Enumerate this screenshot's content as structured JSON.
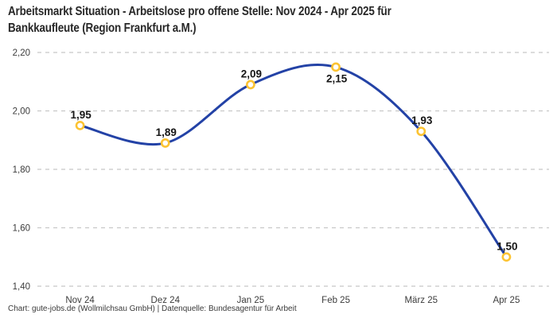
{
  "title": {
    "lines": [
      "Arbeitsmarkt Situation - Arbeitslose pro offene Stelle: Nov 2024 - Apr 2025 für",
      "Bankkaufleute (Region Frankfurt a.M.)"
    ]
  },
  "footer": {
    "source": "Chart: gute-jobs.de (Wollmilchsau GmbH) | Datenquelle: Bundesagentur für Arbeit"
  },
  "chart_data": {
    "type": "line",
    "title": "Arbeitsmarkt Situation - Arbeitslose pro offene Stelle: Nov 2024 - Apr 2025 für Bankkaufleute (Region Frankfurt a.M.)",
    "categories": [
      "Nov 24",
      "Dez 24",
      "Jan 25",
      "Feb 25",
      "März 25",
      "Apr 25"
    ],
    "values": [
      1.95,
      1.89,
      2.09,
      2.15,
      1.93,
      1.5
    ],
    "point_labels": [
      "1,95",
      "1,89",
      "2,09",
      "2,15",
      "1,93",
      "1,50"
    ],
    "point_label_positions": [
      "above",
      "above",
      "above",
      "below",
      "above",
      "above"
    ],
    "ylim": [
      1.4,
      2.2
    ],
    "yticks": [
      {
        "label": "2,20",
        "value": 2.2
      },
      {
        "label": "2,00",
        "value": 2.0
      },
      {
        "label": "1,80",
        "value": 1.8
      },
      {
        "label": "1,60",
        "value": 1.6
      },
      {
        "label": "1,40",
        "value": 1.4
      }
    ],
    "xlabel": "",
    "ylabel": "",
    "grid": "horizontal-dashed",
    "legend": "none",
    "colors": {
      "line": "#2342a6",
      "marker_ring": "#fcc332",
      "marker_fill": "#ffffff",
      "grid": "#c8c8c8",
      "point_label": "#161616",
      "tick_label": "#3c3c3c"
    }
  }
}
